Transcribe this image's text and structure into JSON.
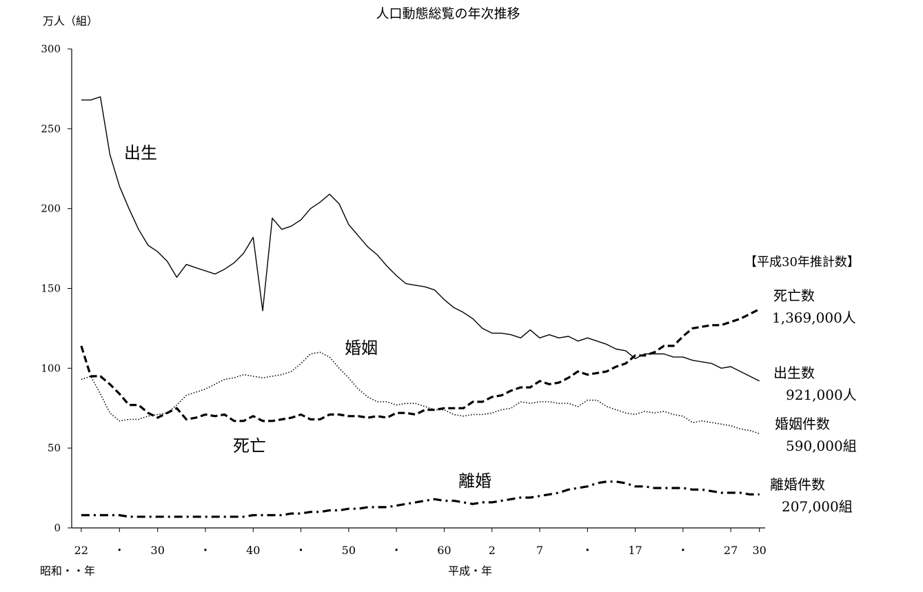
{
  "chart_data": {
    "type": "line",
    "title": "人口動態総覧の年次推移",
    "ylabel": "万人（組）",
    "ylim": [
      0,
      300
    ],
    "yticks": [
      0,
      50,
      100,
      150,
      200,
      250,
      300
    ],
    "x_era_labels": {
      "showa": "昭和・・年",
      "heisei": "平成・年"
    },
    "x_ticks": [
      {
        "year": 1947,
        "label": "22"
      },
      {
        "year": 1951,
        "label": "・"
      },
      {
        "year": 1955,
        "label": "30"
      },
      {
        "year": 1960,
        "label": "・"
      },
      {
        "year": 1965,
        "label": "40"
      },
      {
        "year": 1970,
        "label": "・"
      },
      {
        "year": 1975,
        "label": "50"
      },
      {
        "year": 1980,
        "label": "・"
      },
      {
        "year": 1985,
        "label": "60"
      },
      {
        "year": 1990,
        "label": "2"
      },
      {
        "year": 1995,
        "label": "7"
      },
      {
        "year": 2000,
        "label": "・"
      },
      {
        "year": 2005,
        "label": "17"
      },
      {
        "year": 2010,
        "label": "・"
      },
      {
        "year": 2015,
        "label": "27"
      },
      {
        "year": 2018,
        "label": "30"
      }
    ],
    "legend_title": "【平成30年推計数】",
    "series": [
      {
        "name": "出生",
        "style": "solid",
        "end_label_name": "出生数",
        "end_label_value": "921,000人",
        "x": [
          1947,
          1948,
          1949,
          1950,
          1951,
          1952,
          1953,
          1954,
          1955,
          1956,
          1957,
          1958,
          1959,
          1960,
          1961,
          1962,
          1963,
          1964,
          1965,
          1966,
          1967,
          1968,
          1969,
          1970,
          1971,
          1972,
          1973,
          1974,
          1975,
          1976,
          1977,
          1978,
          1979,
          1980,
          1981,
          1982,
          1983,
          1984,
          1985,
          1986,
          1987,
          1988,
          1989,
          1990,
          1991,
          1992,
          1993,
          1994,
          1995,
          1996,
          1997,
          1998,
          1999,
          2000,
          2001,
          2002,
          2003,
          2004,
          2005,
          2006,
          2007,
          2008,
          2009,
          2010,
          2011,
          2012,
          2013,
          2014,
          2015,
          2016,
          2017,
          2018
        ],
        "values": [
          268,
          268,
          270,
          234,
          214,
          200,
          187,
          177,
          173,
          167,
          157,
          165,
          163,
          161,
          159,
          162,
          166,
          172,
          182,
          136,
          194,
          187,
          189,
          193,
          200,
          204,
          209,
          203,
          190,
          183,
          176,
          171,
          164,
          158,
          153,
          152,
          151,
          149,
          143,
          138,
          135,
          131,
          125,
          122,
          122,
          121,
          119,
          124,
          119,
          121,
          119,
          120,
          117,
          119,
          117,
          115,
          112,
          111,
          106,
          109,
          109,
          109,
          107,
          107,
          105,
          104,
          103,
          100,
          101,
          98,
          95,
          92
        ]
      },
      {
        "name": "死亡",
        "style": "dashed",
        "end_label_name": "死亡数",
        "end_label_value": "1,369,000人",
        "x": [
          1947,
          1948,
          1949,
          1950,
          1951,
          1952,
          1953,
          1954,
          1955,
          1956,
          1957,
          1958,
          1959,
          1960,
          1961,
          1962,
          1963,
          1964,
          1965,
          1966,
          1967,
          1968,
          1969,
          1970,
          1971,
          1972,
          1973,
          1974,
          1975,
          1976,
          1977,
          1978,
          1979,
          1980,
          1981,
          1982,
          1983,
          1984,
          1985,
          1986,
          1987,
          1988,
          1989,
          1990,
          1991,
          1992,
          1993,
          1994,
          1995,
          1996,
          1997,
          1998,
          1999,
          2000,
          2001,
          2002,
          2003,
          2004,
          2005,
          2006,
          2007,
          2008,
          2009,
          2010,
          2011,
          2012,
          2013,
          2014,
          2015,
          2016,
          2017,
          2018
        ],
        "values": [
          114,
          95,
          95,
          90,
          84,
          77,
          77,
          72,
          69,
          72,
          75,
          68,
          69,
          71,
          70,
          71,
          67,
          67,
          70,
          67,
          67,
          68,
          69,
          71,
          68,
          68,
          71,
          71,
          70,
          70,
          69,
          70,
          69,
          72,
          72,
          71,
          74,
          74,
          75,
          75,
          75,
          79,
          79,
          82,
          83,
          86,
          88,
          88,
          92,
          90,
          91,
          94,
          98,
          96,
          97,
          98,
          101,
          103,
          108,
          108,
          110,
          114,
          114,
          120,
          125,
          126,
          127,
          127,
          129,
          131,
          134,
          137
        ]
      },
      {
        "name": "婚姻",
        "style": "dotted",
        "end_label_name": "婚姻件数",
        "end_label_value": "590,000組",
        "x": [
          1947,
          1948,
          1949,
          1950,
          1951,
          1952,
          1953,
          1954,
          1955,
          1956,
          1957,
          1958,
          1959,
          1960,
          1961,
          1962,
          1963,
          1964,
          1965,
          1966,
          1967,
          1968,
          1969,
          1970,
          1971,
          1972,
          1973,
          1974,
          1975,
          1976,
          1977,
          1978,
          1979,
          1980,
          1981,
          1982,
          1983,
          1984,
          1985,
          1986,
          1987,
          1988,
          1989,
          1990,
          1991,
          1992,
          1993,
          1994,
          1995,
          1996,
          1997,
          1998,
          1999,
          2000,
          2001,
          2002,
          2003,
          2004,
          2005,
          2006,
          2007,
          2008,
          2009,
          2010,
          2011,
          2012,
          2013,
          2014,
          2015,
          2016,
          2017,
          2018
        ],
        "values": [
          93,
          95,
          84,
          72,
          67,
          68,
          68,
          70,
          71,
          72,
          77,
          83,
          85,
          87,
          90,
          93,
          94,
          96,
          95,
          94,
          95,
          96,
          98,
          103,
          109,
          110,
          107,
          100,
          94,
          87,
          82,
          79,
          79,
          77,
          78,
          78,
          76,
          74,
          74,
          71,
          70,
          71,
          71,
          72,
          74,
          75,
          79,
          78,
          79,
          79,
          78,
          78,
          76,
          80,
          80,
          76,
          74,
          72,
          71,
          73,
          72,
          73,
          71,
          70,
          66,
          67,
          66,
          65,
          64,
          62,
          61,
          59
        ]
      },
      {
        "name": "離婚",
        "style": "dash-dot",
        "end_label_name": "離婚件数",
        "end_label_value": "207,000組",
        "x": [
          1947,
          1948,
          1949,
          1950,
          1951,
          1952,
          1953,
          1954,
          1955,
          1956,
          1957,
          1958,
          1959,
          1960,
          1961,
          1962,
          1963,
          1964,
          1965,
          1966,
          1967,
          1968,
          1969,
          1970,
          1971,
          1972,
          1973,
          1974,
          1975,
          1976,
          1977,
          1978,
          1979,
          1980,
          1981,
          1982,
          1983,
          1984,
          1985,
          1986,
          1987,
          1988,
          1989,
          1990,
          1991,
          1992,
          1993,
          1994,
          1995,
          1996,
          1997,
          1998,
          1999,
          2000,
          2001,
          2002,
          2003,
          2004,
          2005,
          2006,
          2007,
          2008,
          2009,
          2010,
          2011,
          2012,
          2013,
          2014,
          2015,
          2016,
          2017,
          2018
        ],
        "values": [
          8,
          8,
          8,
          8,
          8,
          7,
          7,
          7,
          7,
          7,
          7,
          7,
          7,
          7,
          7,
          7,
          7,
          7,
          8,
          8,
          8,
          8,
          9,
          9,
          10,
          10,
          11,
          11,
          12,
          12,
          13,
          13,
          13,
          14,
          15,
          16,
          17,
          18,
          17,
          17,
          16,
          15,
          16,
          16,
          17,
          18,
          19,
          19,
          20,
          21,
          22,
          24,
          25,
          26,
          28,
          29,
          29,
          28,
          26,
          26,
          25,
          25,
          25,
          25,
          24,
          24,
          23,
          22,
          22,
          22,
          21,
          21
        ]
      }
    ]
  }
}
